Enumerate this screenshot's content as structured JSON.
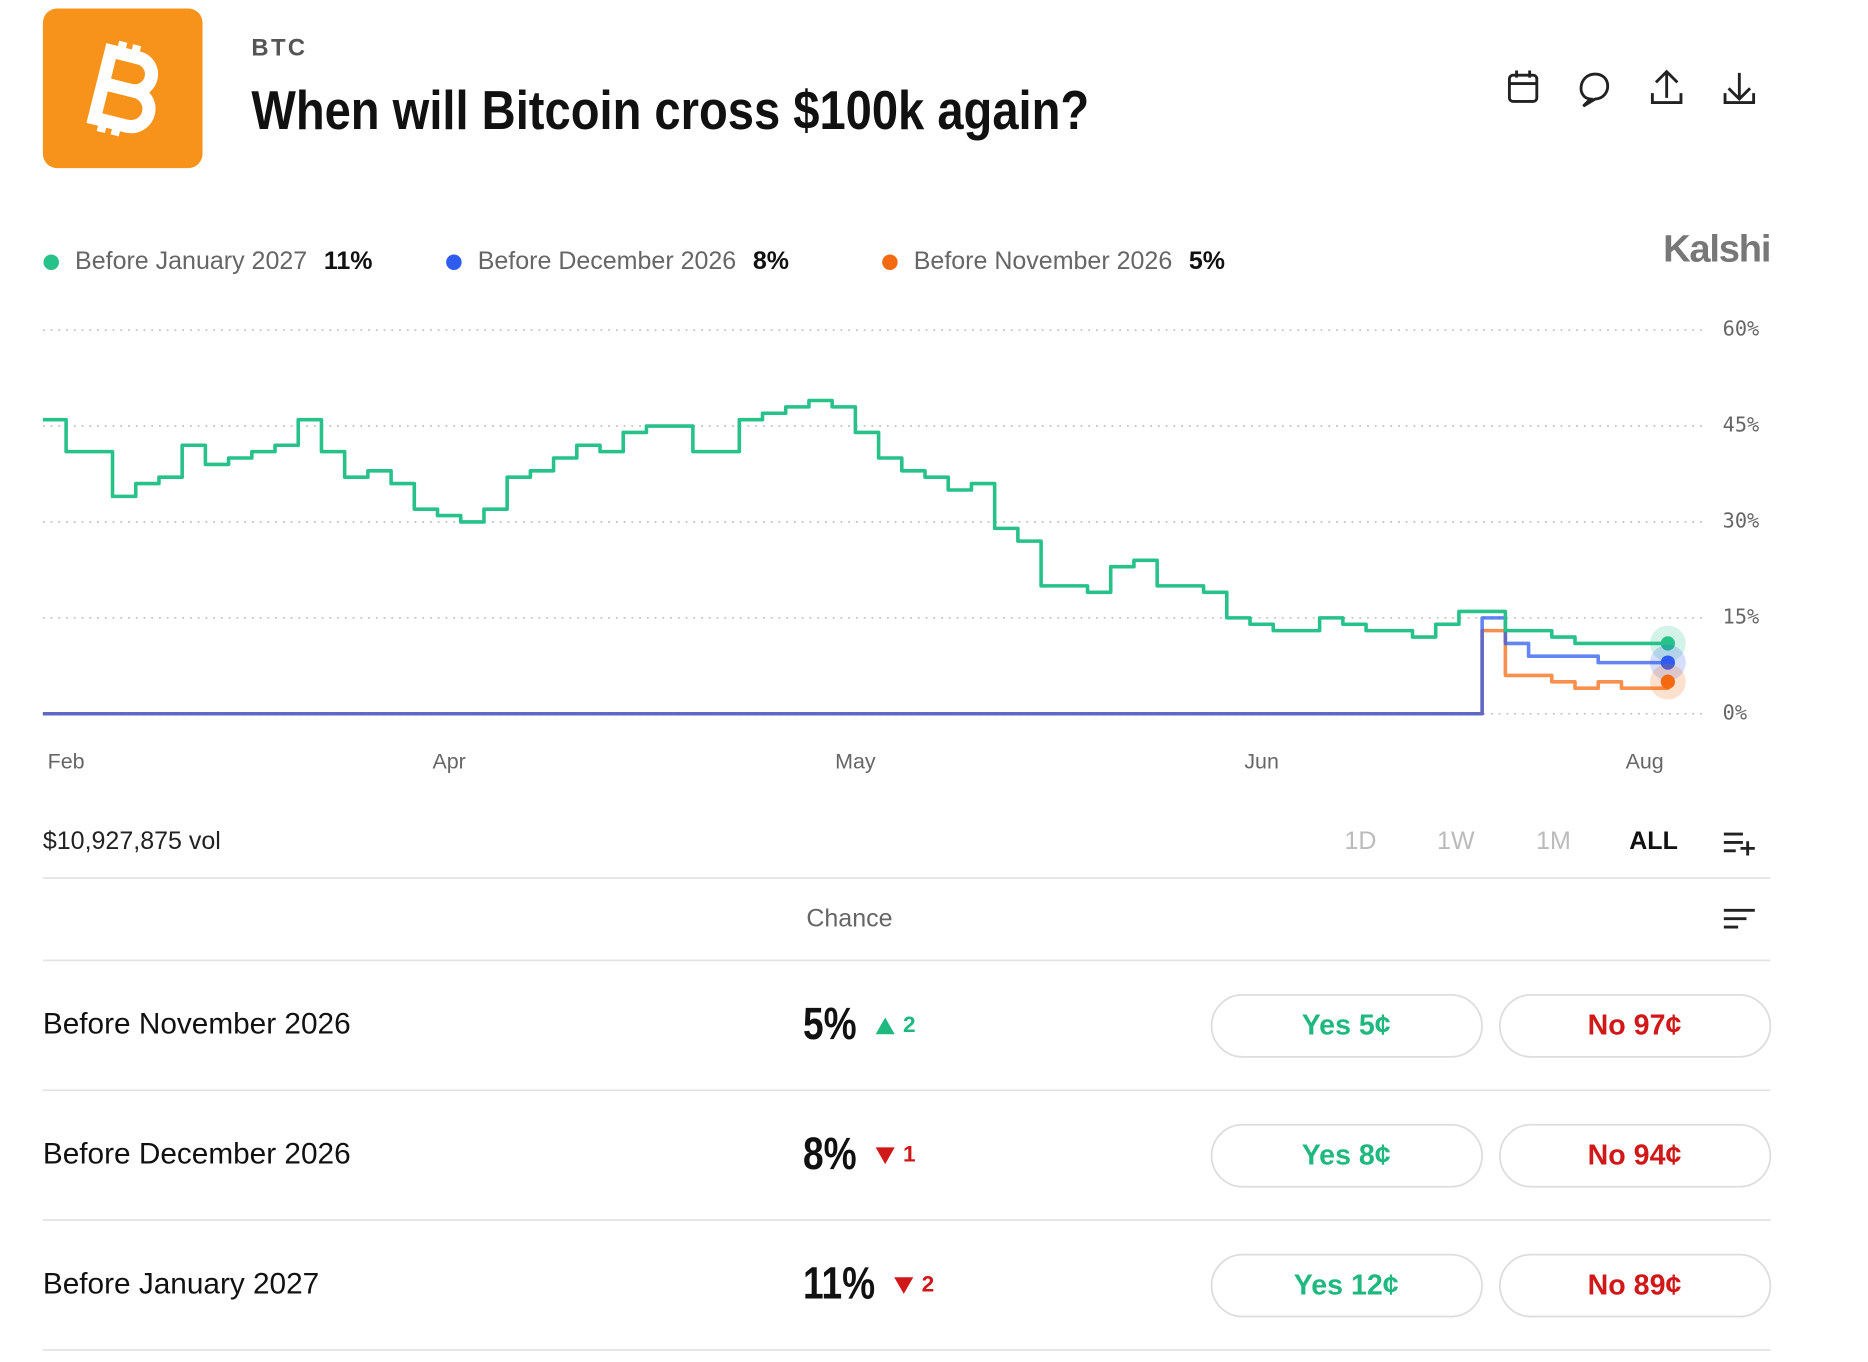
{
  "header": {
    "ticker": "BTC",
    "title": "When will Bitcoin cross $100k again?",
    "brand": "Kalshi"
  },
  "chart_data": {
    "type": "line",
    "x": [
      0,
      1,
      2,
      3,
      4,
      5,
      6,
      7,
      8,
      9,
      10,
      11,
      12,
      13,
      14,
      15,
      16,
      17,
      18,
      19,
      20,
      21,
      22,
      23,
      24,
      25,
      26,
      27,
      28,
      29,
      30,
      31,
      32,
      33,
      34,
      35,
      36,
      37,
      38,
      39,
      40,
      41,
      42,
      43,
      44,
      45,
      46,
      47,
      48,
      49,
      50,
      51,
      52,
      53,
      54,
      55,
      56,
      57,
      58,
      59,
      60,
      61,
      62,
      63,
      64,
      65,
      66,
      67,
      68,
      69,
      70
    ],
    "series": [
      {
        "name": "Before January 2027",
        "legend_label": "11%",
        "color": "#27c18a",
        "values": [
          46,
          41,
          41,
          34,
          36,
          37,
          42,
          39,
          40,
          41,
          42,
          46,
          41,
          37,
          38,
          36,
          32,
          31,
          30,
          32,
          37,
          38,
          40,
          42,
          41,
          44,
          45,
          45,
          41,
          41,
          46,
          47,
          48,
          49,
          48,
          44,
          40,
          38,
          37,
          35,
          36,
          29,
          27,
          20,
          20,
          19,
          23,
          24,
          20,
          20,
          19,
          15,
          14,
          13,
          13,
          15,
          14,
          13,
          13,
          12,
          14,
          16,
          16,
          13,
          13,
          12,
          11,
          11,
          11,
          11,
          11
        ]
      },
      {
        "name": "Before December 2026",
        "legend_label": "8%",
        "color": "#2f5cf0",
        "values": [
          0,
          0,
          0,
          0,
          0,
          0,
          0,
          0,
          0,
          0,
          0,
          0,
          0,
          0,
          0,
          0,
          0,
          0,
          0,
          0,
          0,
          0,
          0,
          0,
          0,
          0,
          0,
          0,
          0,
          0,
          0,
          0,
          0,
          0,
          0,
          0,
          0,
          0,
          0,
          0,
          0,
          0,
          0,
          0,
          0,
          0,
          0,
          0,
          0,
          0,
          0,
          0,
          0,
          0,
          0,
          0,
          0,
          0,
          0,
          0,
          0,
          0,
          15,
          11,
          9,
          9,
          9,
          8,
          8,
          8,
          8
        ]
      },
      {
        "name": "Before November 2026",
        "legend_label": "5%",
        "color": "#f56a10",
        "values": [
          0,
          0,
          0,
          0,
          0,
          0,
          0,
          0,
          0,
          0,
          0,
          0,
          0,
          0,
          0,
          0,
          0,
          0,
          0,
          0,
          0,
          0,
          0,
          0,
          0,
          0,
          0,
          0,
          0,
          0,
          0,
          0,
          0,
          0,
          0,
          0,
          0,
          0,
          0,
          0,
          0,
          0,
          0,
          0,
          0,
          0,
          0,
          0,
          0,
          0,
          0,
          0,
          0,
          0,
          0,
          0,
          0,
          0,
          0,
          0,
          0,
          0,
          13,
          6,
          6,
          5,
          4,
          5,
          4,
          4,
          5
        ]
      }
    ],
    "xlim": [
      0,
      70
    ],
    "xticks": [
      {
        "value": 1,
        "label": "Feb"
      },
      {
        "value": 17.5,
        "label": "Apr"
      },
      {
        "value": 35,
        "label": "May"
      },
      {
        "value": 52.5,
        "label": "Jun"
      },
      {
        "value": 69,
        "label": "Aug"
      }
    ],
    "ylim": [
      0,
      60
    ],
    "yticks": [
      {
        "value": 0,
        "label": "0%"
      },
      {
        "value": 15,
        "label": "15%"
      },
      {
        "value": 30,
        "label": "30%"
      },
      {
        "value": 45,
        "label": "45%"
      },
      {
        "value": 60,
        "label": "60%"
      }
    ],
    "grid": true
  },
  "controls": {
    "volume": "$10,927,875 vol",
    "ranges": [
      "1D",
      "1W",
      "1M",
      "ALL"
    ],
    "active_range": "ALL"
  },
  "table": {
    "column": "Chance",
    "rows": [
      {
        "name": "Before November 2026",
        "chance": "5%",
        "change": "2",
        "direction": "up",
        "yes": "Yes 5¢",
        "no": "No 97¢"
      },
      {
        "name": "Before December 2026",
        "chance": "8%",
        "change": "1",
        "direction": "down",
        "yes": "Yes 8¢",
        "no": "No 94¢"
      },
      {
        "name": "Before January 2027",
        "chance": "11%",
        "change": "2",
        "direction": "down",
        "yes": "Yes 12¢",
        "no": "No 89¢"
      }
    ]
  }
}
